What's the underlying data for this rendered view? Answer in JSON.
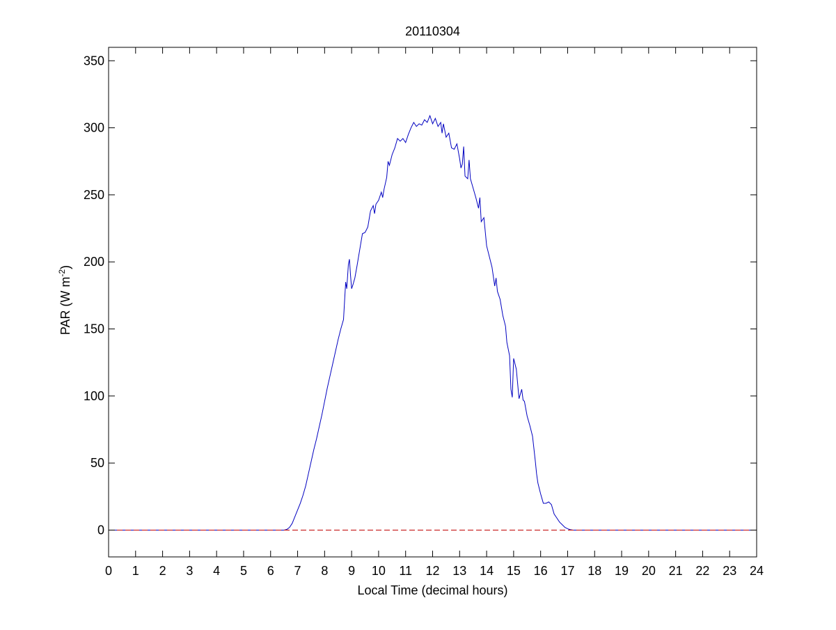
{
  "chart_data": {
    "type": "line",
    "title": "20110304",
    "xlabel": "Local Time (decimal hours)",
    "ylabel": {
      "main": "PAR (W m",
      "sup": "-2",
      "close": ")"
    },
    "xlim": [
      0,
      24
    ],
    "ylim": [
      -20,
      360
    ],
    "xticks": [
      0,
      1,
      2,
      3,
      4,
      5,
      6,
      7,
      8,
      9,
      10,
      11,
      12,
      13,
      14,
      15,
      16,
      17,
      18,
      19,
      20,
      21,
      22,
      23,
      24
    ],
    "yticks": [
      0,
      50,
      100,
      150,
      200,
      250,
      300,
      350
    ],
    "grid": false,
    "series": [
      {
        "color": "#0000c0",
        "style": "solid",
        "points": [
          [
            0,
            0
          ],
          [
            6.5,
            0
          ],
          [
            6.6,
            0.5
          ],
          [
            6.7,
            2
          ],
          [
            6.8,
            5
          ],
          [
            6.9,
            10
          ],
          [
            7.0,
            15
          ],
          [
            7.1,
            20
          ],
          [
            7.2,
            26
          ],
          [
            7.3,
            33
          ],
          [
            7.4,
            42
          ],
          [
            7.5,
            51
          ],
          [
            7.6,
            60
          ],
          [
            7.7,
            68
          ],
          [
            7.8,
            77
          ],
          [
            7.9,
            86
          ],
          [
            8.0,
            96
          ],
          [
            8.1,
            106
          ],
          [
            8.2,
            115
          ],
          [
            8.3,
            124
          ],
          [
            8.4,
            133
          ],
          [
            8.5,
            142
          ],
          [
            8.6,
            150
          ],
          [
            8.7,
            157
          ],
          [
            8.78,
            185
          ],
          [
            8.82,
            180
          ],
          [
            8.88,
            198
          ],
          [
            8.92,
            202
          ],
          [
            8.96,
            190
          ],
          [
            9.0,
            180
          ],
          [
            9.05,
            183
          ],
          [
            9.12,
            188
          ],
          [
            9.2,
            197
          ],
          [
            9.25,
            203
          ],
          [
            9.35,
            215
          ],
          [
            9.4,
            221
          ],
          [
            9.5,
            222
          ],
          [
            9.6,
            226
          ],
          [
            9.7,
            238
          ],
          [
            9.8,
            242
          ],
          [
            9.85,
            236
          ],
          [
            9.9,
            243
          ],
          [
            10.0,
            246
          ],
          [
            10.1,
            252
          ],
          [
            10.15,
            248
          ],
          [
            10.2,
            254
          ],
          [
            10.3,
            263
          ],
          [
            10.35,
            275
          ],
          [
            10.4,
            272
          ],
          [
            10.5,
            280
          ],
          [
            10.6,
            285
          ],
          [
            10.7,
            292
          ],
          [
            10.8,
            290
          ],
          [
            10.9,
            292
          ],
          [
            11.0,
            289
          ],
          [
            11.1,
            295
          ],
          [
            11.2,
            300
          ],
          [
            11.3,
            304
          ],
          [
            11.4,
            301
          ],
          [
            11.5,
            303
          ],
          [
            11.6,
            302
          ],
          [
            11.7,
            306
          ],
          [
            11.8,
            304
          ],
          [
            11.9,
            309
          ],
          [
            12.0,
            303
          ],
          [
            12.1,
            307
          ],
          [
            12.2,
            301
          ],
          [
            12.3,
            304
          ],
          [
            12.35,
            296
          ],
          [
            12.4,
            303
          ],
          [
            12.5,
            293
          ],
          [
            12.6,
            296
          ],
          [
            12.7,
            285
          ],
          [
            12.8,
            284
          ],
          [
            12.9,
            288
          ],
          [
            13.0,
            277
          ],
          [
            13.05,
            270
          ],
          [
            13.1,
            273
          ],
          [
            13.15,
            286
          ],
          [
            13.2,
            264
          ],
          [
            13.3,
            262
          ],
          [
            13.35,
            276
          ],
          [
            13.4,
            262
          ],
          [
            13.5,
            255
          ],
          [
            13.6,
            248
          ],
          [
            13.7,
            240
          ],
          [
            13.75,
            248
          ],
          [
            13.8,
            230
          ],
          [
            13.9,
            233
          ],
          [
            14.0,
            212
          ],
          [
            14.1,
            204
          ],
          [
            14.2,
            196
          ],
          [
            14.3,
            182
          ],
          [
            14.35,
            188
          ],
          [
            14.4,
            178
          ],
          [
            14.5,
            172
          ],
          [
            14.6,
            160
          ],
          [
            14.7,
            152
          ],
          [
            14.75,
            140
          ],
          [
            14.85,
            130
          ],
          [
            14.9,
            105
          ],
          [
            14.95,
            99
          ],
          [
            15.0,
            128
          ],
          [
            15.1,
            120
          ],
          [
            15.2,
            98
          ],
          [
            15.3,
            105
          ],
          [
            15.35,
            97
          ],
          [
            15.4,
            96
          ],
          [
            15.5,
            85
          ],
          [
            15.6,
            78
          ],
          [
            15.7,
            70
          ],
          [
            15.8,
            52
          ],
          [
            15.85,
            42
          ],
          [
            15.9,
            35
          ],
          [
            16.0,
            27
          ],
          [
            16.1,
            20
          ],
          [
            16.2,
            20
          ],
          [
            16.3,
            21
          ],
          [
            16.4,
            19
          ],
          [
            16.5,
            12
          ],
          [
            16.6,
            9
          ],
          [
            16.7,
            6
          ],
          [
            16.8,
            4
          ],
          [
            16.9,
            2
          ],
          [
            17.0,
            1
          ],
          [
            17.1,
            0.3
          ],
          [
            17.2,
            0
          ],
          [
            24,
            0
          ]
        ]
      },
      {
        "color": "#c00000",
        "style": "dashed",
        "points": [
          [
            0,
            0
          ],
          [
            24,
            0
          ]
        ]
      }
    ]
  }
}
